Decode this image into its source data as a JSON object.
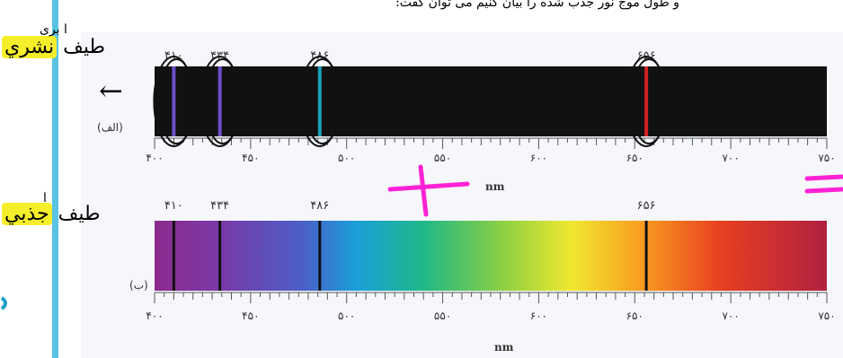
{
  "header": {
    "text": "و طول موج نور جذب شده را بيان کنيم می‌ توان گفت:"
  },
  "annotations": {
    "label_a_prefix": "طيف",
    "label_a_highlight": "نشري",
    "label_a_super": "ا بری",
    "label_b_prefix": "طيف",
    "label_b_highlight": "جذبي",
    "label_b_super": "ا",
    "arrow": "←",
    "highlight_color": "#f5ee2a",
    "plus_color": "#ff22d6",
    "equals_color": "#ff22d6",
    "strip_color": "#58c3e3"
  },
  "spectrum_a": {
    "panel_tag": "(الف)",
    "unit": "nm",
    "background": "#111111",
    "peak_labels": [
      "۴۱۰",
      "۴۳۴",
      "۴۸۶",
      "۶۵۶"
    ],
    "peaks": [
      {
        "wavelength": 410,
        "color": "#6b4fc9"
      },
      {
        "wavelength": 434,
        "color": "#6b4fc9"
      },
      {
        "wavelength": 486,
        "color": "#1aa0b8"
      },
      {
        "wavelength": 656,
        "color": "#d42020"
      }
    ],
    "tick_labels": [
      "۴۰۰",
      "۴۵۰",
      "۵۰۰",
      "۵۵۰",
      "۶۰۰",
      "۶۵۰",
      "۷۰۰",
      "۷۵۰"
    ],
    "tick_values": [
      400,
      450,
      500,
      550,
      600,
      650,
      700,
      750
    ]
  },
  "spectrum_b": {
    "panel_tag": "(ب)",
    "unit": "nm",
    "peak_labels": [
      "۴۱۰",
      "۴۳۴",
      "۴۸۶",
      "۶۵۶"
    ],
    "peaks": [
      {
        "wavelength": 410,
        "color": "#111111"
      },
      {
        "wavelength": 434,
        "color": "#111111"
      },
      {
        "wavelength": 486,
        "color": "#111111"
      },
      {
        "wavelength": 656,
        "color": "#111111"
      }
    ],
    "tick_labels": [
      "۴۰۰",
      "۴۵۰",
      "۵۰۰",
      "۵۵۰",
      "۶۰۰",
      "۶۵۰",
      "۷۰۰",
      "۷۵۰"
    ],
    "tick_values": [
      400,
      450,
      500,
      550,
      600,
      650,
      700,
      750
    ]
  },
  "axis": {
    "min": 400,
    "max": 750
  }
}
